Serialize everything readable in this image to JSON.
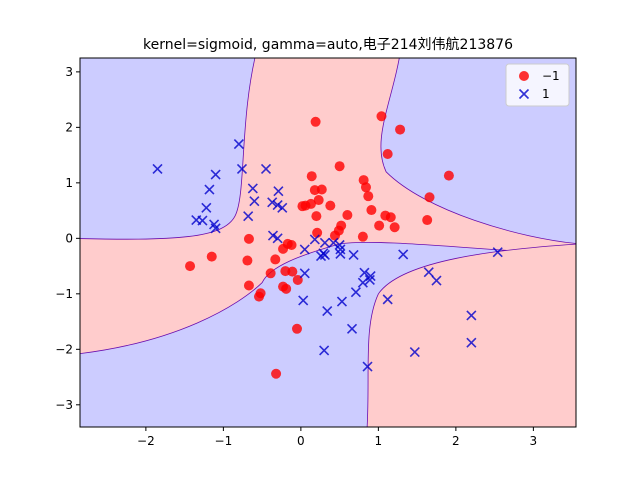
{
  "chart_data": {
    "type": "scatter",
    "title": "kernel=sigmoid, gamma=auto,电子214刘伟航213876",
    "xlim": [
      -2.85,
      3.55
    ],
    "ylim": [
      -3.4,
      3.25
    ],
    "xticks": [
      -2,
      -1,
      0,
      1,
      2,
      3
    ],
    "yticks": [
      -3,
      -2,
      -1,
      0,
      1,
      2,
      3
    ],
    "grid": false,
    "legend_position": "top-right",
    "decision_regions": {
      "positive_color": "#ccccff",
      "negative_color": "#ffcccc",
      "boundary_color": "#6a0dad"
    },
    "series": [
      {
        "name": "−1",
        "marker": "circle",
        "color": "#ff0000",
        "points": [
          [
            0.19,
            2.1
          ],
          [
            1.04,
            2.2
          ],
          [
            1.28,
            1.96
          ],
          [
            0.5,
            1.3
          ],
          [
            1.12,
            1.52
          ],
          [
            0.14,
            1.12
          ],
          [
            0.81,
            1.05
          ],
          [
            0.84,
            0.92
          ],
          [
            1.91,
            1.13
          ],
          [
            0.18,
            0.87
          ],
          [
            0.27,
            0.88
          ],
          [
            0.87,
            0.76
          ],
          [
            1.66,
            0.74
          ],
          [
            0.23,
            0.69
          ],
          [
            0.38,
            0.59
          ],
          [
            0.06,
            0.59
          ],
          [
            0.13,
            0.62
          ],
          [
            0.02,
            0.58
          ],
          [
            0.91,
            0.51
          ],
          [
            1.09,
            0.41
          ],
          [
            1.16,
            0.38
          ],
          [
            0.6,
            0.42
          ],
          [
            1.63,
            0.33
          ],
          [
            0.2,
            0.4
          ],
          [
            0.52,
            0.23
          ],
          [
            1.21,
            0.2
          ],
          [
            0.49,
            0.14
          ],
          [
            1.01,
            0.23
          ],
          [
            0.21,
            0.1
          ],
          [
            0.44,
            0.05
          ],
          [
            0.8,
            0.03
          ],
          [
            -0.67,
            -0.01
          ],
          [
            -0.17,
            -0.1
          ],
          [
            -0.23,
            -0.19
          ],
          [
            -0.12,
            -0.12
          ],
          [
            -1.15,
            -0.33
          ],
          [
            -1.43,
            -0.5
          ],
          [
            -0.69,
            -0.4
          ],
          [
            -0.33,
            -0.38
          ],
          [
            -0.2,
            -0.59
          ],
          [
            -0.11,
            -0.6
          ],
          [
            -0.39,
            -0.63
          ],
          [
            -0.04,
            -0.75
          ],
          [
            -0.67,
            -0.85
          ],
          [
            -0.23,
            -0.87
          ],
          [
            -0.19,
            -0.91
          ],
          [
            -0.52,
            -0.99
          ],
          [
            -0.54,
            -1.05
          ],
          [
            -0.05,
            -1.63
          ],
          [
            -0.32,
            -2.44
          ]
        ]
      },
      {
        "name": "1",
        "marker": "x",
        "color": "#0000cc",
        "points": [
          [
            -0.8,
            1.7
          ],
          [
            -1.85,
            1.25
          ],
          [
            -1.1,
            1.15
          ],
          [
            -0.76,
            1.25
          ],
          [
            -0.45,
            1.25
          ],
          [
            -1.18,
            0.88
          ],
          [
            -0.62,
            0.9
          ],
          [
            -0.29,
            0.85
          ],
          [
            -0.6,
            0.67
          ],
          [
            -0.3,
            0.6
          ],
          [
            -0.24,
            0.55
          ],
          [
            -0.37,
            0.65
          ],
          [
            -1.22,
            0.55
          ],
          [
            -1.35,
            0.33
          ],
          [
            -1.27,
            0.32
          ],
          [
            -1.12,
            0.25
          ],
          [
            -0.68,
            0.4
          ],
          [
            -1.1,
            0.18
          ],
          [
            -0.36,
            0.05
          ],
          [
            0.18,
            -0.02
          ],
          [
            -0.3,
            0.0
          ],
          [
            0.31,
            -0.08
          ],
          [
            0.42,
            -0.08
          ],
          [
            0.5,
            -0.12
          ],
          [
            0.05,
            -0.2
          ],
          [
            0.51,
            -0.2
          ],
          [
            0.29,
            -0.27
          ],
          [
            0.26,
            -0.32
          ],
          [
            0.31,
            -0.3
          ],
          [
            0.51,
            -0.28
          ],
          [
            0.68,
            -0.3
          ],
          [
            1.32,
            -0.29
          ],
          [
            2.54,
            -0.25
          ],
          [
            0.82,
            -0.62
          ],
          [
            0.9,
            -0.68
          ],
          [
            0.05,
            -0.63
          ],
          [
            1.65,
            -0.61
          ],
          [
            1.75,
            -0.76
          ],
          [
            0.89,
            -0.75
          ],
          [
            0.8,
            -0.8
          ],
          [
            0.71,
            -0.97
          ],
          [
            0.03,
            -1.12
          ],
          [
            0.53,
            -1.14
          ],
          [
            1.12,
            -1.1
          ],
          [
            0.34,
            -1.31
          ],
          [
            2.2,
            -1.39
          ],
          [
            0.66,
            -1.63
          ],
          [
            2.2,
            -1.88
          ],
          [
            0.3,
            -2.02
          ],
          [
            1.47,
            -2.05
          ],
          [
            0.86,
            -2.31
          ]
        ]
      }
    ]
  }
}
